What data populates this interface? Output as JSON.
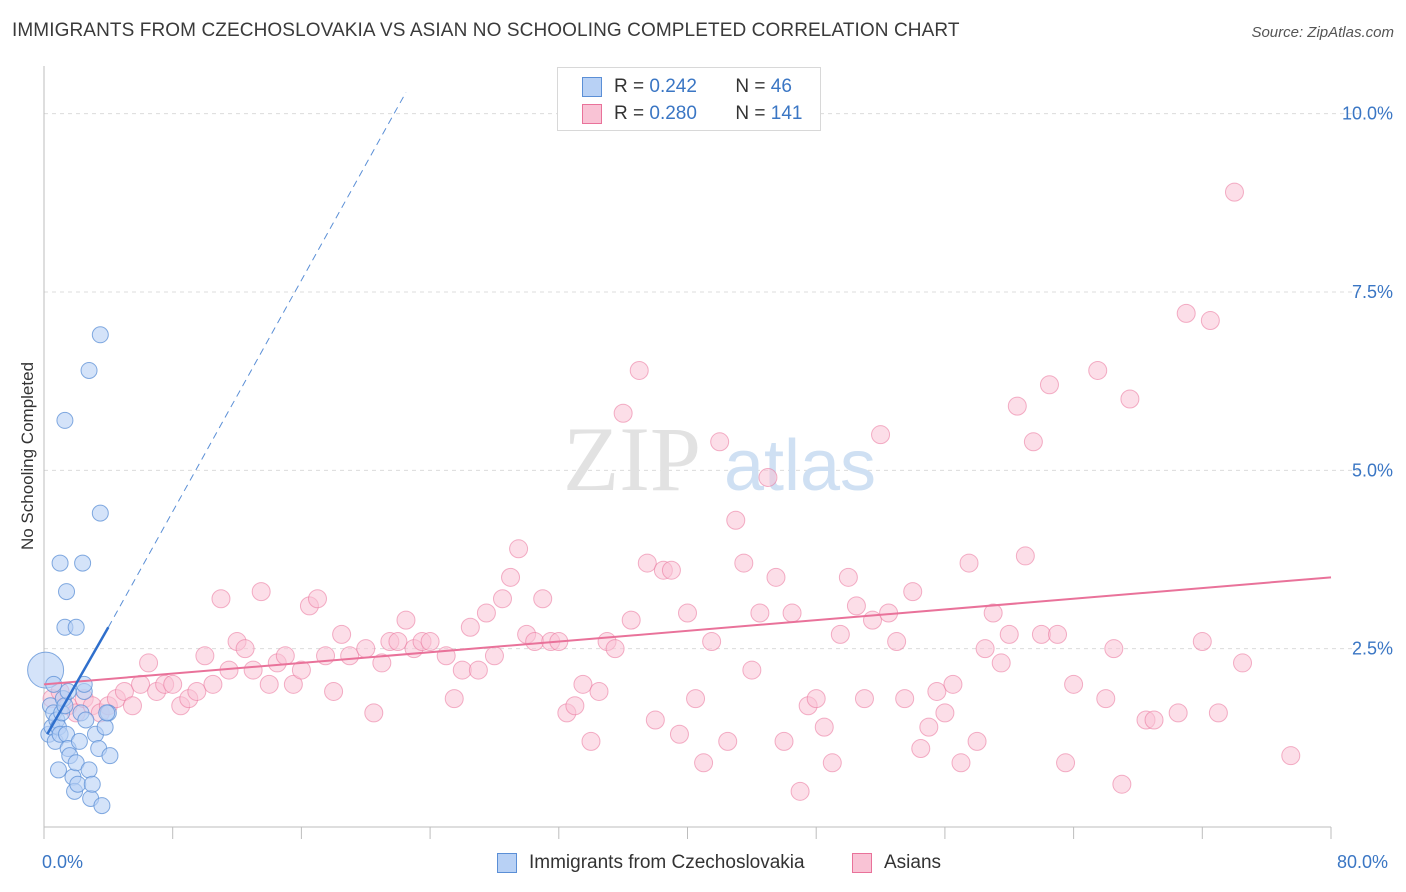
{
  "title": "IMMIGRANTS FROM CZECHOSLOVAKIA VS ASIAN NO SCHOOLING COMPLETED CORRELATION CHART",
  "source": "Source: ZipAtlas.com",
  "watermark": {
    "part1": "ZIP",
    "part2": "atlas"
  },
  "legend": {
    "r_label": "R =",
    "n_label": "N =",
    "rows": [
      {
        "r": "0.242",
        "n": "46",
        "color": "#5b8fd6",
        "fill": "#b8d1f5"
      },
      {
        "r": "0.280",
        "n": "141",
        "color": "#e9729a",
        "fill": "#f9c3d5"
      }
    ]
  },
  "bottom_legend": [
    {
      "label": "Immigrants from Czechoslovakia"
    },
    {
      "label": "Asians"
    }
  ],
  "x_tick_labels": {
    "left": "0.0%",
    "right": "80.0%"
  },
  "chart_data": {
    "type": "scatter",
    "title": "IMMIGRANTS FROM CZECHOSLOVAKIA VS ASIAN NO SCHOOLING COMPLETED CORRELATION CHART",
    "xlabel": "",
    "ylabel": "No Schooling Completed",
    "xlim": [
      0,
      80
    ],
    "ylim": [
      0,
      10.5
    ],
    "y_ticks": [
      {
        "value": 2.5,
        "label": "2.5%"
      },
      {
        "value": 5.0,
        "label": "5.0%"
      },
      {
        "value": 7.5,
        "label": "7.5%"
      },
      {
        "value": 10.0,
        "label": "10.0%"
      }
    ],
    "grid": true,
    "legend_position": "top-center",
    "series": [
      {
        "name": "Immigrants from Czechoslovakia",
        "color": "#5b8fd6",
        "fill": "#b8d1f5",
        "trend": {
          "x": [
            0.2,
            4.0
          ],
          "y": [
            1.3,
            2.8
          ],
          "extended_to": [
            22.5,
            10.3
          ]
        },
        "points": [
          [
            0.1,
            2.2
          ],
          [
            0.3,
            1.3
          ],
          [
            0.4,
            1.7
          ],
          [
            0.5,
            1.4
          ],
          [
            0.6,
            1.6
          ],
          [
            0.7,
            1.2
          ],
          [
            0.8,
            1.5
          ],
          [
            0.9,
            1.4
          ],
          [
            1.0,
            1.3
          ],
          [
            1.1,
            1.6
          ],
          [
            1.2,
            1.8
          ],
          [
            1.3,
            1.7
          ],
          [
            1.4,
            1.3
          ],
          [
            1.5,
            1.1
          ],
          [
            1.6,
            1.0
          ],
          [
            0.9,
            0.8
          ],
          [
            1.8,
            0.7
          ],
          [
            1.9,
            0.5
          ],
          [
            2.0,
            0.9
          ],
          [
            2.1,
            0.6
          ],
          [
            2.2,
            1.2
          ],
          [
            2.3,
            1.6
          ],
          [
            2.5,
            1.9
          ],
          [
            2.6,
            1.5
          ],
          [
            2.8,
            0.8
          ],
          [
            2.9,
            0.4
          ],
          [
            3.0,
            0.6
          ],
          [
            3.2,
            1.3
          ],
          [
            3.4,
            1.1
          ],
          [
            3.6,
            0.3
          ],
          [
            3.8,
            1.4
          ],
          [
            4.0,
            1.6
          ],
          [
            1.3,
            2.8
          ],
          [
            1.4,
            3.3
          ],
          [
            1.0,
            3.7
          ],
          [
            2.4,
            3.7
          ],
          [
            3.5,
            4.4
          ],
          [
            1.3,
            5.7
          ],
          [
            2.8,
            6.4
          ],
          [
            3.5,
            6.9
          ],
          [
            0.6,
            2.0
          ],
          [
            2.5,
            2.0
          ],
          [
            1.5,
            1.9
          ],
          [
            2.0,
            2.8
          ],
          [
            3.9,
            1.6
          ],
          [
            4.1,
            1.0
          ]
        ]
      },
      {
        "name": "Asians",
        "color": "#e9729a",
        "fill": "#f9c3d5",
        "trend": {
          "x": [
            0,
            80
          ],
          "y": [
            2.0,
            3.5
          ]
        },
        "points": [
          [
            0.5,
            1.8
          ],
          [
            1.0,
            1.9
          ],
          [
            1.5,
            1.7
          ],
          [
            2.0,
            1.6
          ],
          [
            2.5,
            1.8
          ],
          [
            3.0,
            1.7
          ],
          [
            3.5,
            1.6
          ],
          [
            4.0,
            1.7
          ],
          [
            4.5,
            1.8
          ],
          [
            5.0,
            1.9
          ],
          [
            5.5,
            1.7
          ],
          [
            6.0,
            2.0
          ],
          [
            6.5,
            2.3
          ],
          [
            7.0,
            1.9
          ],
          [
            7.5,
            2.0
          ],
          [
            8.0,
            2.0
          ],
          [
            8.5,
            1.7
          ],
          [
            9.0,
            1.8
          ],
          [
            9.5,
            1.9
          ],
          [
            10.0,
            2.4
          ],
          [
            10.5,
            2.0
          ],
          [
            11.0,
            3.2
          ],
          [
            11.5,
            2.2
          ],
          [
            12.0,
            2.6
          ],
          [
            12.5,
            2.5
          ],
          [
            13.0,
            2.2
          ],
          [
            13.5,
            3.3
          ],
          [
            14.0,
            2.0
          ],
          [
            14.5,
            2.3
          ],
          [
            15.0,
            2.4
          ],
          [
            15.5,
            2.0
          ],
          [
            16.0,
            2.2
          ],
          [
            16.5,
            3.1
          ],
          [
            17.0,
            3.2
          ],
          [
            17.5,
            2.4
          ],
          [
            18.0,
            1.9
          ],
          [
            18.5,
            2.7
          ],
          [
            19.0,
            2.4
          ],
          [
            20.0,
            2.5
          ],
          [
            20.5,
            1.6
          ],
          [
            21.0,
            2.3
          ],
          [
            21.5,
            2.6
          ],
          [
            22.0,
            2.6
          ],
          [
            22.5,
            2.9
          ],
          [
            23.0,
            2.5
          ],
          [
            23.5,
            2.6
          ],
          [
            24.0,
            2.6
          ],
          [
            25.0,
            2.4
          ],
          [
            25.5,
            1.8
          ],
          [
            26.0,
            2.2
          ],
          [
            26.5,
            2.8
          ],
          [
            27.0,
            2.2
          ],
          [
            27.5,
            3.0
          ],
          [
            28.0,
            2.4
          ],
          [
            28.5,
            3.2
          ],
          [
            29.0,
            3.5
          ],
          [
            29.5,
            3.9
          ],
          [
            30.0,
            2.7
          ],
          [
            30.5,
            2.6
          ],
          [
            31.0,
            3.2
          ],
          [
            31.5,
            2.6
          ],
          [
            32.0,
            2.6
          ],
          [
            32.5,
            1.6
          ],
          [
            33.0,
            1.7
          ],
          [
            33.5,
            2.0
          ],
          [
            34.0,
            1.2
          ],
          [
            34.5,
            1.9
          ],
          [
            35.0,
            2.6
          ],
          [
            35.5,
            2.5
          ],
          [
            36.0,
            5.8
          ],
          [
            36.5,
            2.9
          ],
          [
            37.0,
            6.4
          ],
          [
            37.5,
            3.7
          ],
          [
            38.0,
            1.5
          ],
          [
            38.5,
            3.6
          ],
          [
            39.0,
            3.6
          ],
          [
            39.5,
            1.3
          ],
          [
            40.0,
            3.0
          ],
          [
            40.5,
            1.8
          ],
          [
            41.0,
            0.9
          ],
          [
            41.5,
            2.6
          ],
          [
            42.0,
            5.4
          ],
          [
            42.5,
            1.2
          ],
          [
            43.0,
            4.3
          ],
          [
            43.5,
            3.7
          ],
          [
            44.0,
            2.2
          ],
          [
            44.5,
            3.0
          ],
          [
            45.0,
            4.9
          ],
          [
            45.5,
            3.5
          ],
          [
            46.0,
            1.2
          ],
          [
            46.5,
            3.0
          ],
          [
            47.0,
            0.5
          ],
          [
            47.5,
            1.7
          ],
          [
            48.0,
            1.8
          ],
          [
            48.5,
            1.4
          ],
          [
            49.0,
            0.9
          ],
          [
            49.5,
            2.7
          ],
          [
            50.0,
            3.5
          ],
          [
            50.5,
            3.1
          ],
          [
            51.0,
            1.8
          ],
          [
            51.5,
            2.9
          ],
          [
            52.0,
            5.5
          ],
          [
            52.5,
            3.0
          ],
          [
            53.0,
            2.6
          ],
          [
            53.5,
            1.8
          ],
          [
            54.0,
            3.3
          ],
          [
            54.5,
            1.1
          ],
          [
            55.0,
            1.4
          ],
          [
            55.5,
            1.9
          ],
          [
            56.0,
            1.6
          ],
          [
            56.5,
            2.0
          ],
          [
            57.0,
            0.9
          ],
          [
            57.5,
            3.7
          ],
          [
            58.0,
            1.2
          ],
          [
            58.5,
            2.5
          ],
          [
            59.0,
            3.0
          ],
          [
            59.5,
            2.3
          ],
          [
            60.0,
            2.7
          ],
          [
            60.5,
            5.9
          ],
          [
            61.0,
            3.8
          ],
          [
            61.5,
            5.4
          ],
          [
            62.0,
            2.7
          ],
          [
            62.5,
            6.2
          ],
          [
            63.0,
            2.7
          ],
          [
            63.5,
            0.9
          ],
          [
            64.0,
            2.0
          ],
          [
            65.5,
            6.4
          ],
          [
            66.0,
            1.8
          ],
          [
            66.5,
            2.5
          ],
          [
            67.0,
            0.6
          ],
          [
            67.5,
            6.0
          ],
          [
            68.5,
            1.5
          ],
          [
            69.0,
            1.5
          ],
          [
            70.5,
            1.6
          ],
          [
            71.0,
            7.2
          ],
          [
            72.0,
            2.6
          ],
          [
            72.5,
            7.1
          ],
          [
            73.0,
            1.6
          ],
          [
            74.0,
            8.9
          ],
          [
            74.5,
            2.3
          ],
          [
            77.5,
            1.0
          ]
        ]
      }
    ]
  }
}
